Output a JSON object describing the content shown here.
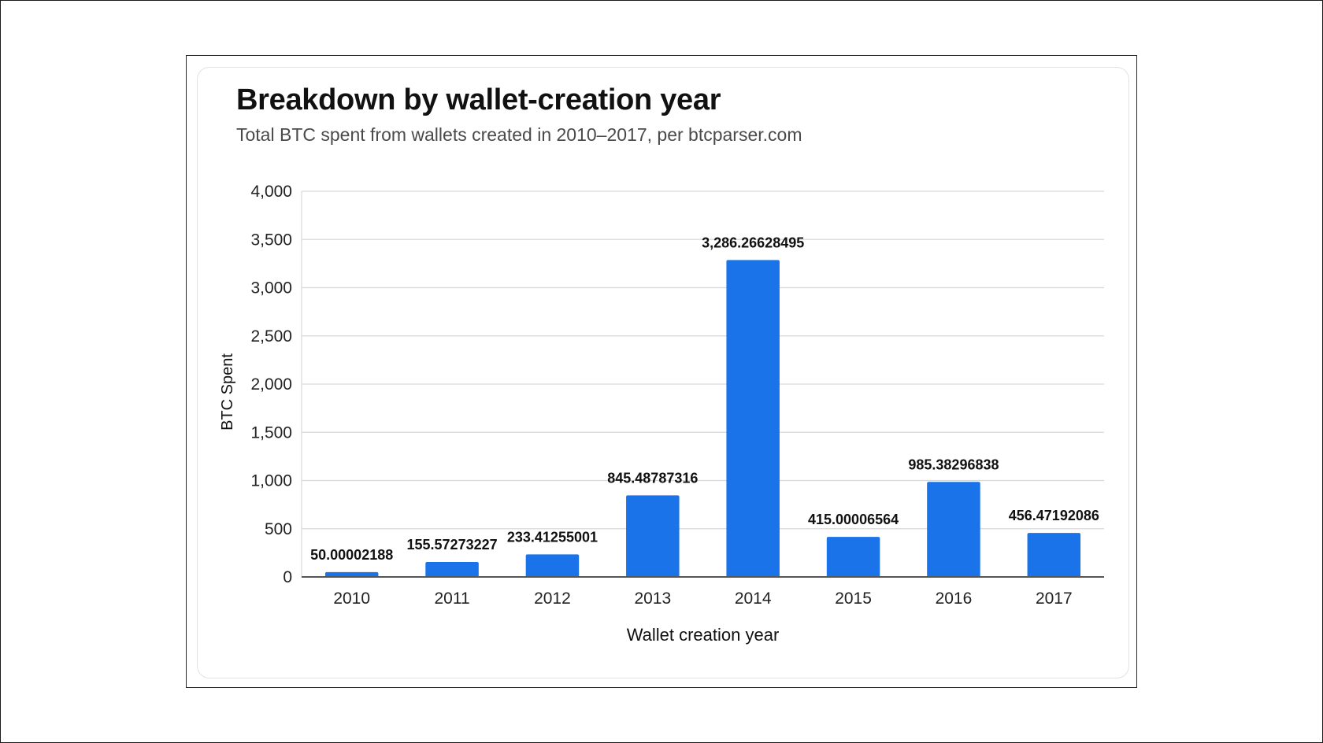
{
  "chart_data": {
    "type": "bar",
    "title": "Breakdown by wallet-creation year",
    "subtitle": "Total BTC spent from wallets created in 2010–2017, per btcparser.com",
    "xlabel": "Wallet creation year",
    "ylabel": "BTC Spent",
    "ylim": [
      0,
      4000
    ],
    "yticks": [
      0,
      500,
      1000,
      1500,
      2000,
      2500,
      3000,
      3500,
      4000
    ],
    "ytick_labels": [
      "0",
      "500",
      "1,000",
      "1,500",
      "2,000",
      "2,500",
      "3,000",
      "3,500",
      "4,000"
    ],
    "grid": true,
    "legend": "none",
    "categories": [
      "2010",
      "2011",
      "2012",
      "2013",
      "2014",
      "2015",
      "2016",
      "2017"
    ],
    "values": [
      50.00002188,
      155.57273227,
      233.41255001,
      845.48787316,
      3286.26628495,
      415.00006564,
      985.38296838,
      456.47192086
    ],
    "value_labels": [
      "50.00002188",
      "155.57273227",
      "233.41255001",
      "845.48787316",
      "3,286.26628495",
      "415.00006564",
      "985.38296838",
      "456.47192086"
    ],
    "bar_color": "#1a73e8",
    "grid_color": "#d9d9d9",
    "axis_color": "#555555"
  }
}
